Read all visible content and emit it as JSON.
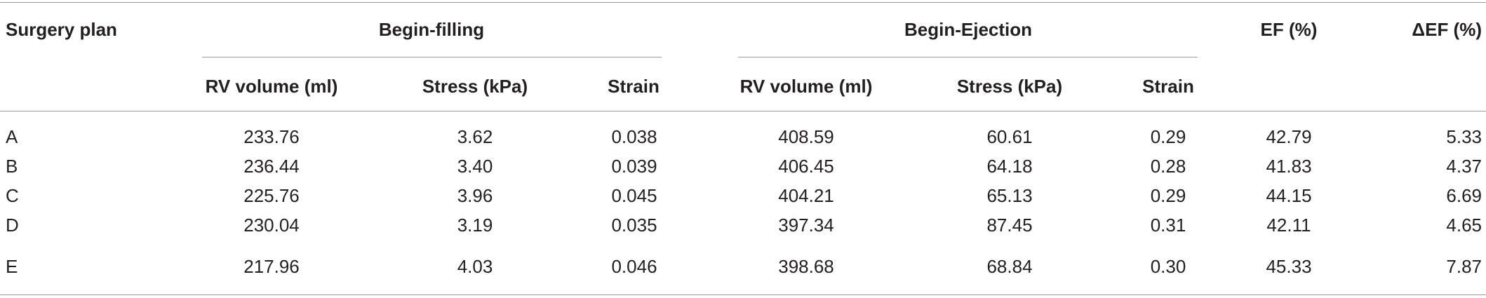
{
  "table": {
    "group_headers": {
      "surgery_plan": "Surgery plan",
      "begin_filling": "Begin-filling",
      "begin_ejection": "Begin-Ejection",
      "ef": "EF (%)",
      "delta_ef": "ΔEF (%)"
    },
    "sub_headers": {
      "bf_rv_volume": "RV volume (ml)",
      "bf_stress": "Stress (kPa)",
      "bf_strain": "Strain",
      "be_rv_volume": "RV volume (ml)",
      "be_stress": "Stress (kPa)",
      "be_strain": "Strain"
    },
    "rows": [
      {
        "plan": "A",
        "bf_rv": "233.76",
        "bf_stress": "3.62",
        "bf_strain": "0.038",
        "be_rv": "408.59",
        "be_stress": "60.61",
        "be_strain": "0.29",
        "ef": "42.79",
        "delta_ef": "5.33"
      },
      {
        "plan": "B",
        "bf_rv": "236.44",
        "bf_stress": "3.40",
        "bf_strain": "0.039",
        "be_rv": "406.45",
        "be_stress": "64.18",
        "be_strain": "0.28",
        "ef": "41.83",
        "delta_ef": "4.37"
      },
      {
        "plan": "C",
        "bf_rv": "225.76",
        "bf_stress": "3.96",
        "bf_strain": "0.045",
        "be_rv": "404.21",
        "be_stress": "65.13",
        "be_strain": "0.29",
        "ef": "44.15",
        "delta_ef": "6.69"
      },
      {
        "plan": "D",
        "bf_rv": "230.04",
        "bf_stress": "3.19",
        "bf_strain": "0.035",
        "be_rv": "397.34",
        "be_stress": "87.45",
        "be_strain": "0.31",
        "ef": "42.11",
        "delta_ef": "4.65"
      },
      {
        "plan": "E",
        "bf_rv": "217.96",
        "bf_stress": "4.03",
        "bf_strain": "0.046",
        "be_rv": "398.68",
        "be_stress": "68.84",
        "be_strain": "0.30",
        "ef": "45.33",
        "delta_ef": "7.87"
      }
    ]
  }
}
